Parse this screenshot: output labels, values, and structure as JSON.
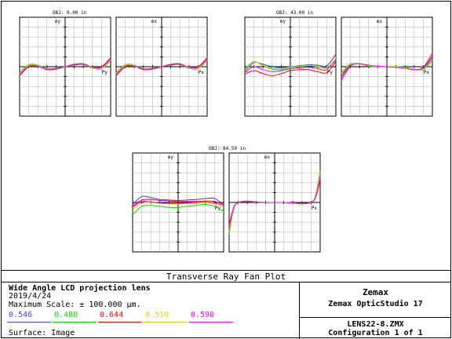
{
  "chart_data": [
    {
      "type": "line",
      "subtitle": "OBJ: 0.00 in",
      "panel": "ey",
      "xlabel": "Py",
      "ylabel": "ey",
      "xlim": [
        -1,
        1
      ],
      "ylim": [
        -100,
        100
      ],
      "grid": true,
      "series": [
        {
          "name": "0.546",
          "color": "#3c3cff",
          "x": [
            -1,
            -0.8,
            -0.6,
            -0.4,
            -0.2,
            0,
            0.2,
            0.4,
            0.6,
            0.8,
            1
          ],
          "y": [
            -15,
            2,
            2,
            -5,
            -4,
            0,
            4,
            5,
            -2,
            -2,
            15
          ]
        },
        {
          "name": "0.480",
          "color": "#00dd00",
          "x": [
            -1,
            -0.8,
            -0.6,
            -0.4,
            -0.2,
            0,
            0.2,
            0.4,
            0.6,
            0.8,
            1
          ],
          "y": [
            -12,
            4,
            3,
            -4,
            -3,
            0,
            3,
            4,
            -3,
            -4,
            12
          ]
        },
        {
          "name": "0.644",
          "color": "#ff0000",
          "x": [
            -1,
            -0.8,
            -0.6,
            -0.4,
            -0.2,
            0,
            0.2,
            0.4,
            0.6,
            0.8,
            1
          ],
          "y": [
            -18,
            0,
            1,
            -6,
            -5,
            0,
            5,
            6,
            -1,
            0,
            18
          ]
        },
        {
          "name": "0.510",
          "color": "#d8d800",
          "x": [
            -1,
            -0.8,
            -0.6,
            -0.4,
            -0.2,
            0,
            0.2,
            0.4,
            0.6,
            0.8,
            1
          ],
          "y": [
            -14,
            3,
            2,
            -5,
            -4,
            0,
            4,
            5,
            -2,
            -3,
            14
          ]
        },
        {
          "name": "0.590",
          "color": "#ff00ff",
          "x": [
            -1,
            -0.8,
            -0.6,
            -0.4,
            -0.2,
            0,
            0.2,
            0.4,
            0.6,
            0.8,
            1
          ],
          "y": [
            -16,
            1,
            1,
            -5,
            -4,
            0,
            4,
            5,
            -1,
            -1,
            16
          ]
        }
      ]
    },
    {
      "type": "line",
      "subtitle": "",
      "panel": "ex",
      "xlabel": "Px",
      "ylabel": "ex",
      "xlim": [
        -1,
        1
      ],
      "ylim": [
        -100,
        100
      ],
      "grid": true,
      "series": [
        {
          "name": "0.546",
          "color": "#3c3cff",
          "x": [
            -1,
            -0.8,
            -0.6,
            -0.4,
            -0.2,
            0,
            0.2,
            0.4,
            0.6,
            0.8,
            1
          ],
          "y": [
            -15,
            2,
            2,
            -5,
            -4,
            0,
            4,
            5,
            -2,
            -2,
            15
          ]
        },
        {
          "name": "0.480",
          "color": "#00dd00",
          "x": [
            -1,
            -0.8,
            -0.6,
            -0.4,
            -0.2,
            0,
            0.2,
            0.4,
            0.6,
            0.8,
            1
          ],
          "y": [
            -12,
            4,
            3,
            -4,
            -3,
            0,
            3,
            4,
            -3,
            -4,
            12
          ]
        },
        {
          "name": "0.644",
          "color": "#ff0000",
          "x": [
            -1,
            -0.8,
            -0.6,
            -0.4,
            -0.2,
            0,
            0.2,
            0.4,
            0.6,
            0.8,
            1
          ],
          "y": [
            -18,
            0,
            1,
            -6,
            -5,
            0,
            5,
            6,
            -1,
            0,
            18
          ]
        },
        {
          "name": "0.510",
          "color": "#d8d800",
          "x": [
            -1,
            -0.8,
            -0.6,
            -0.4,
            -0.2,
            0,
            0.2,
            0.4,
            0.6,
            0.8,
            1
          ],
          "y": [
            -14,
            3,
            2,
            -5,
            -4,
            0,
            4,
            5,
            -2,
            -3,
            14
          ]
        },
        {
          "name": "0.590",
          "color": "#ff00ff",
          "x": [
            -1,
            -0.8,
            -0.6,
            -0.4,
            -0.2,
            0,
            0.2,
            0.4,
            0.6,
            0.8,
            1
          ],
          "y": [
            -16,
            1,
            1,
            -5,
            -4,
            0,
            4,
            5,
            -1,
            -1,
            16
          ]
        }
      ]
    },
    {
      "type": "line",
      "subtitle": "OBJ: 43.00 in",
      "panel": "ey",
      "xlabel": "Py",
      "ylabel": "ey",
      "xlim": [
        -1,
        1
      ],
      "ylim": [
        -100,
        100
      ],
      "grid": true,
      "series": [
        {
          "name": "0.546",
          "color": "#3c3cff",
          "x": [
            -1,
            -0.8,
            -0.6,
            -0.4,
            -0.2,
            0,
            0.2,
            0.4,
            0.6,
            0.8,
            1
          ],
          "y": [
            -10,
            8,
            5,
            0,
            -2,
            0,
            2,
            4,
            3,
            2,
            25
          ]
        },
        {
          "name": "0.480",
          "color": "#00dd00",
          "x": [
            -1,
            -0.8,
            -0.6,
            -0.4,
            -0.2,
            0,
            0.2,
            0.4,
            0.6,
            0.8,
            1
          ],
          "y": [
            -5,
            10,
            2,
            -5,
            -6,
            -3,
            -1,
            2,
            0,
            -3,
            12
          ]
        },
        {
          "name": "0.644",
          "color": "#ff0000",
          "x": [
            -1,
            -0.8,
            -0.6,
            -0.4,
            -0.2,
            0,
            0.2,
            0.4,
            0.6,
            0.8,
            1
          ],
          "y": [
            -15,
            -8,
            -14,
            -18,
            -14,
            -8,
            -6,
            -6,
            -10,
            -12,
            10
          ]
        },
        {
          "name": "0.510",
          "color": "#d8d800",
          "x": [
            -1,
            -0.8,
            -0.6,
            -0.4,
            -0.2,
            0,
            0.2,
            0.4,
            0.6,
            0.8,
            1
          ],
          "y": [
            -8,
            9,
            3,
            -3,
            -4,
            -1,
            1,
            3,
            1,
            -1,
            18
          ]
        },
        {
          "name": "0.590",
          "color": "#ff00ff",
          "x": [
            -1,
            -0.8,
            -0.6,
            -0.4,
            -0.2,
            0,
            0.2,
            0.4,
            0.6,
            0.8,
            1
          ],
          "y": [
            -12,
            0,
            -6,
            -10,
            -8,
            -4,
            -2,
            -1,
            -4,
            -6,
            15
          ]
        }
      ]
    },
    {
      "type": "line",
      "subtitle": "",
      "panel": "ex",
      "xlabel": "Px",
      "ylabel": "ex",
      "xlim": [
        -1,
        1
      ],
      "ylim": [
        -100,
        100
      ],
      "grid": true,
      "series": [
        {
          "name": "0.546",
          "color": "#3c3cff",
          "x": [
            -1,
            -0.8,
            -0.6,
            -0.4,
            -0.2,
            0,
            0.2,
            0.4,
            0.6,
            0.8,
            1
          ],
          "y": [
            -18,
            4,
            6,
            2,
            0,
            0,
            0,
            -2,
            -6,
            -4,
            18
          ]
        },
        {
          "name": "0.480",
          "color": "#00dd00",
          "x": [
            -1,
            -0.8,
            -0.6,
            -0.4,
            -0.2,
            0,
            0.2,
            0.4,
            0.6,
            0.8,
            1
          ],
          "y": [
            -12,
            6,
            5,
            1,
            0,
            0,
            0,
            -1,
            -5,
            -6,
            12
          ]
        },
        {
          "name": "0.644",
          "color": "#ff0000",
          "x": [
            -1,
            -0.8,
            -0.6,
            -0.4,
            -0.2,
            0,
            0.2,
            0.4,
            0.6,
            0.8,
            1
          ],
          "y": [
            -22,
            2,
            6,
            3,
            1,
            0,
            -1,
            -3,
            -6,
            -2,
            22
          ]
        },
        {
          "name": "0.510",
          "color": "#d8d800",
          "x": [
            -1,
            -0.8,
            -0.6,
            -0.4,
            -0.2,
            0,
            0.2,
            0.4,
            0.6,
            0.8,
            1
          ],
          "y": [
            -15,
            5,
            5,
            2,
            0,
            0,
            0,
            -2,
            -5,
            -5,
            15
          ]
        },
        {
          "name": "0.590",
          "color": "#ff00ff",
          "x": [
            -1,
            -0.8,
            -0.6,
            -0.4,
            -0.2,
            0,
            0.2,
            0.4,
            0.6,
            0.8,
            1
          ],
          "y": [
            -28,
            1,
            6,
            3,
            1,
            0,
            -1,
            -3,
            -6,
            -1,
            28
          ]
        }
      ]
    },
    {
      "type": "line",
      "subtitle": "OBJ: 84.50 in",
      "panel": "ey",
      "xlabel": "Py",
      "ylabel": "ey",
      "xlim": [
        -1,
        1
      ],
      "ylim": [
        -100,
        100
      ],
      "grid": true,
      "series": [
        {
          "name": "0.546",
          "color": "#3c3cff",
          "x": [
            -1,
            -0.8,
            -0.6,
            -0.4,
            -0.2,
            0,
            0.2,
            0.4,
            0.6,
            0.8,
            1
          ],
          "y": [
            -5,
            12,
            10,
            6,
            5,
            4,
            5,
            6,
            8,
            8,
            -5
          ]
        },
        {
          "name": "0.480",
          "color": "#00dd00",
          "x": [
            -1,
            -0.8,
            -0.6,
            -0.4,
            -0.2,
            0,
            0.2,
            0.4,
            0.6,
            0.8,
            1
          ],
          "y": [
            -25,
            -8,
            -6,
            -8,
            -10,
            -10,
            -8,
            -6,
            -4,
            -8,
            -18
          ]
        },
        {
          "name": "0.644",
          "color": "#ff0000",
          "x": [
            -1,
            -0.8,
            -0.6,
            -0.4,
            -0.2,
            0,
            0.2,
            0.4,
            0.6,
            0.8,
            1
          ],
          "y": [
            -8,
            5,
            6,
            4,
            3,
            2,
            2,
            2,
            3,
            2,
            -4
          ]
        },
        {
          "name": "0.510",
          "color": "#d8d800",
          "x": [
            -1,
            -0.8,
            -0.6,
            -0.4,
            -0.2,
            0,
            0.2,
            0.4,
            0.6,
            0.8,
            1
          ],
          "y": [
            -15,
            -2,
            0,
            -2,
            -3,
            -3,
            -2,
            -1,
            0,
            -3,
            -10
          ]
        },
        {
          "name": "0.590",
          "color": "#ff00ff",
          "x": [
            -1,
            -0.8,
            -0.6,
            -0.4,
            -0.2,
            0,
            0.2,
            0.4,
            0.6,
            0.8,
            1
          ],
          "y": [
            -10,
            2,
            1,
            -1,
            -2,
            -2,
            -1,
            0,
            1,
            -1,
            -6
          ]
        }
      ]
    },
    {
      "type": "line",
      "subtitle": "",
      "panel": "ex",
      "xlabel": "Px",
      "ylabel": "ex",
      "xlim": [
        -1,
        1
      ],
      "ylim": [
        -100,
        100
      ],
      "grid": true,
      "series": [
        {
          "name": "0.546",
          "color": "#3c3cff",
          "x": [
            -1,
            -0.9,
            -0.8,
            -0.6,
            -0.4,
            -0.2,
            0,
            0.2,
            0.4,
            0.6,
            0.8,
            0.9,
            1
          ],
          "y": [
            -55,
            -12,
            0,
            2,
            1,
            0,
            0,
            0,
            -1,
            -2,
            0,
            12,
            55
          ]
        },
        {
          "name": "0.480",
          "color": "#00dd00",
          "x": [
            -1,
            -0.9,
            -0.8,
            -0.6,
            -0.4,
            -0.2,
            0,
            0.2,
            0.4,
            0.6,
            0.8,
            0.9,
            1
          ],
          "y": [
            -65,
            -15,
            0,
            3,
            1,
            0,
            0,
            0,
            -1,
            -3,
            0,
            15,
            65
          ]
        },
        {
          "name": "0.644",
          "color": "#ff0000",
          "x": [
            -1,
            -0.9,
            -0.8,
            -0.6,
            -0.4,
            -0.2,
            0,
            0.2,
            0.4,
            0.6,
            0.8,
            0.9,
            1
          ],
          "y": [
            -45,
            -10,
            0,
            2,
            1,
            0,
            0,
            0,
            -1,
            -2,
            0,
            10,
            45
          ]
        },
        {
          "name": "0.510",
          "color": "#d8d800",
          "x": [
            -1,
            -0.9,
            -0.8,
            -0.6,
            -0.4,
            -0.2,
            0,
            0.2,
            0.4,
            0.6,
            0.8,
            0.9,
            1
          ],
          "y": [
            -60,
            -14,
            0,
            2,
            1,
            0,
            0,
            0,
            -1,
            -2,
            0,
            14,
            60
          ]
        },
        {
          "name": "0.590",
          "color": "#ff00ff",
          "x": [
            -1,
            -0.9,
            -0.8,
            -0.6,
            -0.4,
            -0.2,
            0,
            0.2,
            0.4,
            0.6,
            0.8,
            0.9,
            1
          ],
          "y": [
            -50,
            -11,
            0,
            2,
            1,
            0,
            0,
            0,
            -1,
            -2,
            0,
            11,
            50
          ]
        }
      ]
    }
  ],
  "footer": {
    "plot_title": "Transverse Ray Fan Plot",
    "lens_title": "Wide Angle LCD projection lens",
    "date": "2019/4/24",
    "max_scale": "Maximum Scale: ± 100.000 µm.",
    "wavelengths": [
      {
        "value": "0.546",
        "color": "#3c3cff"
      },
      {
        "value": "0.480",
        "color": "#00dd00"
      },
      {
        "value": "0.644",
        "color": "#ff0000"
      },
      {
        "value": "0.510",
        "color": "#d8d800"
      },
      {
        "value": "0.590",
        "color": "#ff00ff"
      }
    ],
    "surface": "Surface: Image",
    "company": "Zemax",
    "product": "Zemax OpticStudio 17",
    "file": "LENS22-8.ZMX",
    "configuration": "Configuration 1 of 1"
  }
}
